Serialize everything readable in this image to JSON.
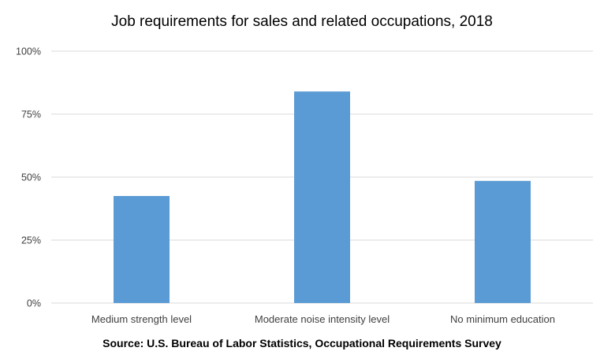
{
  "chart_data": {
    "type": "bar",
    "title": "Job requirements for sales and related occupations, 2018",
    "source": "Source: U.S. Bureau of Labor Statistics, Occupational Requirements Survey",
    "categories": [
      "Medium strength level",
      "Moderate noise intensity level",
      "No minimum education"
    ],
    "values": [
      42.5,
      84,
      48.5
    ],
    "yticks": [
      "0%",
      "25%",
      "50%",
      "75%",
      "100%"
    ],
    "ylim": [
      0,
      100
    ],
    "grid": true,
    "legend": "none",
    "xlabel": "",
    "ylabel": "",
    "bar_color": "#5b9bd5",
    "grid_color": "#d9d9d9"
  }
}
